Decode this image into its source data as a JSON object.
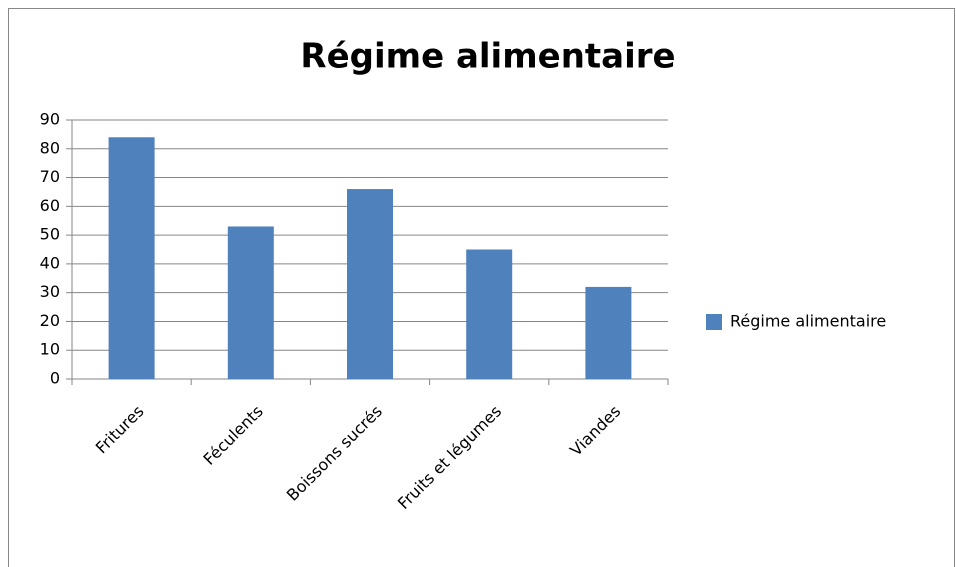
{
  "chart_data": {
    "type": "bar",
    "title": "Régime alimentaire",
    "categories": [
      "Fritures",
      "Féculents",
      "Boissons sucrés",
      "Fruits et légumes",
      "Viandes"
    ],
    "series": [
      {
        "name": "Régime alimentaire",
        "color": "#4f81bd",
        "values": [
          84,
          53,
          66,
          45,
          32
        ]
      }
    ],
    "ylim": [
      0,
      90
    ],
    "yticks": [
      0,
      10,
      20,
      30,
      40,
      50,
      60,
      70,
      80,
      90
    ],
    "grid": true,
    "legend": "right"
  }
}
